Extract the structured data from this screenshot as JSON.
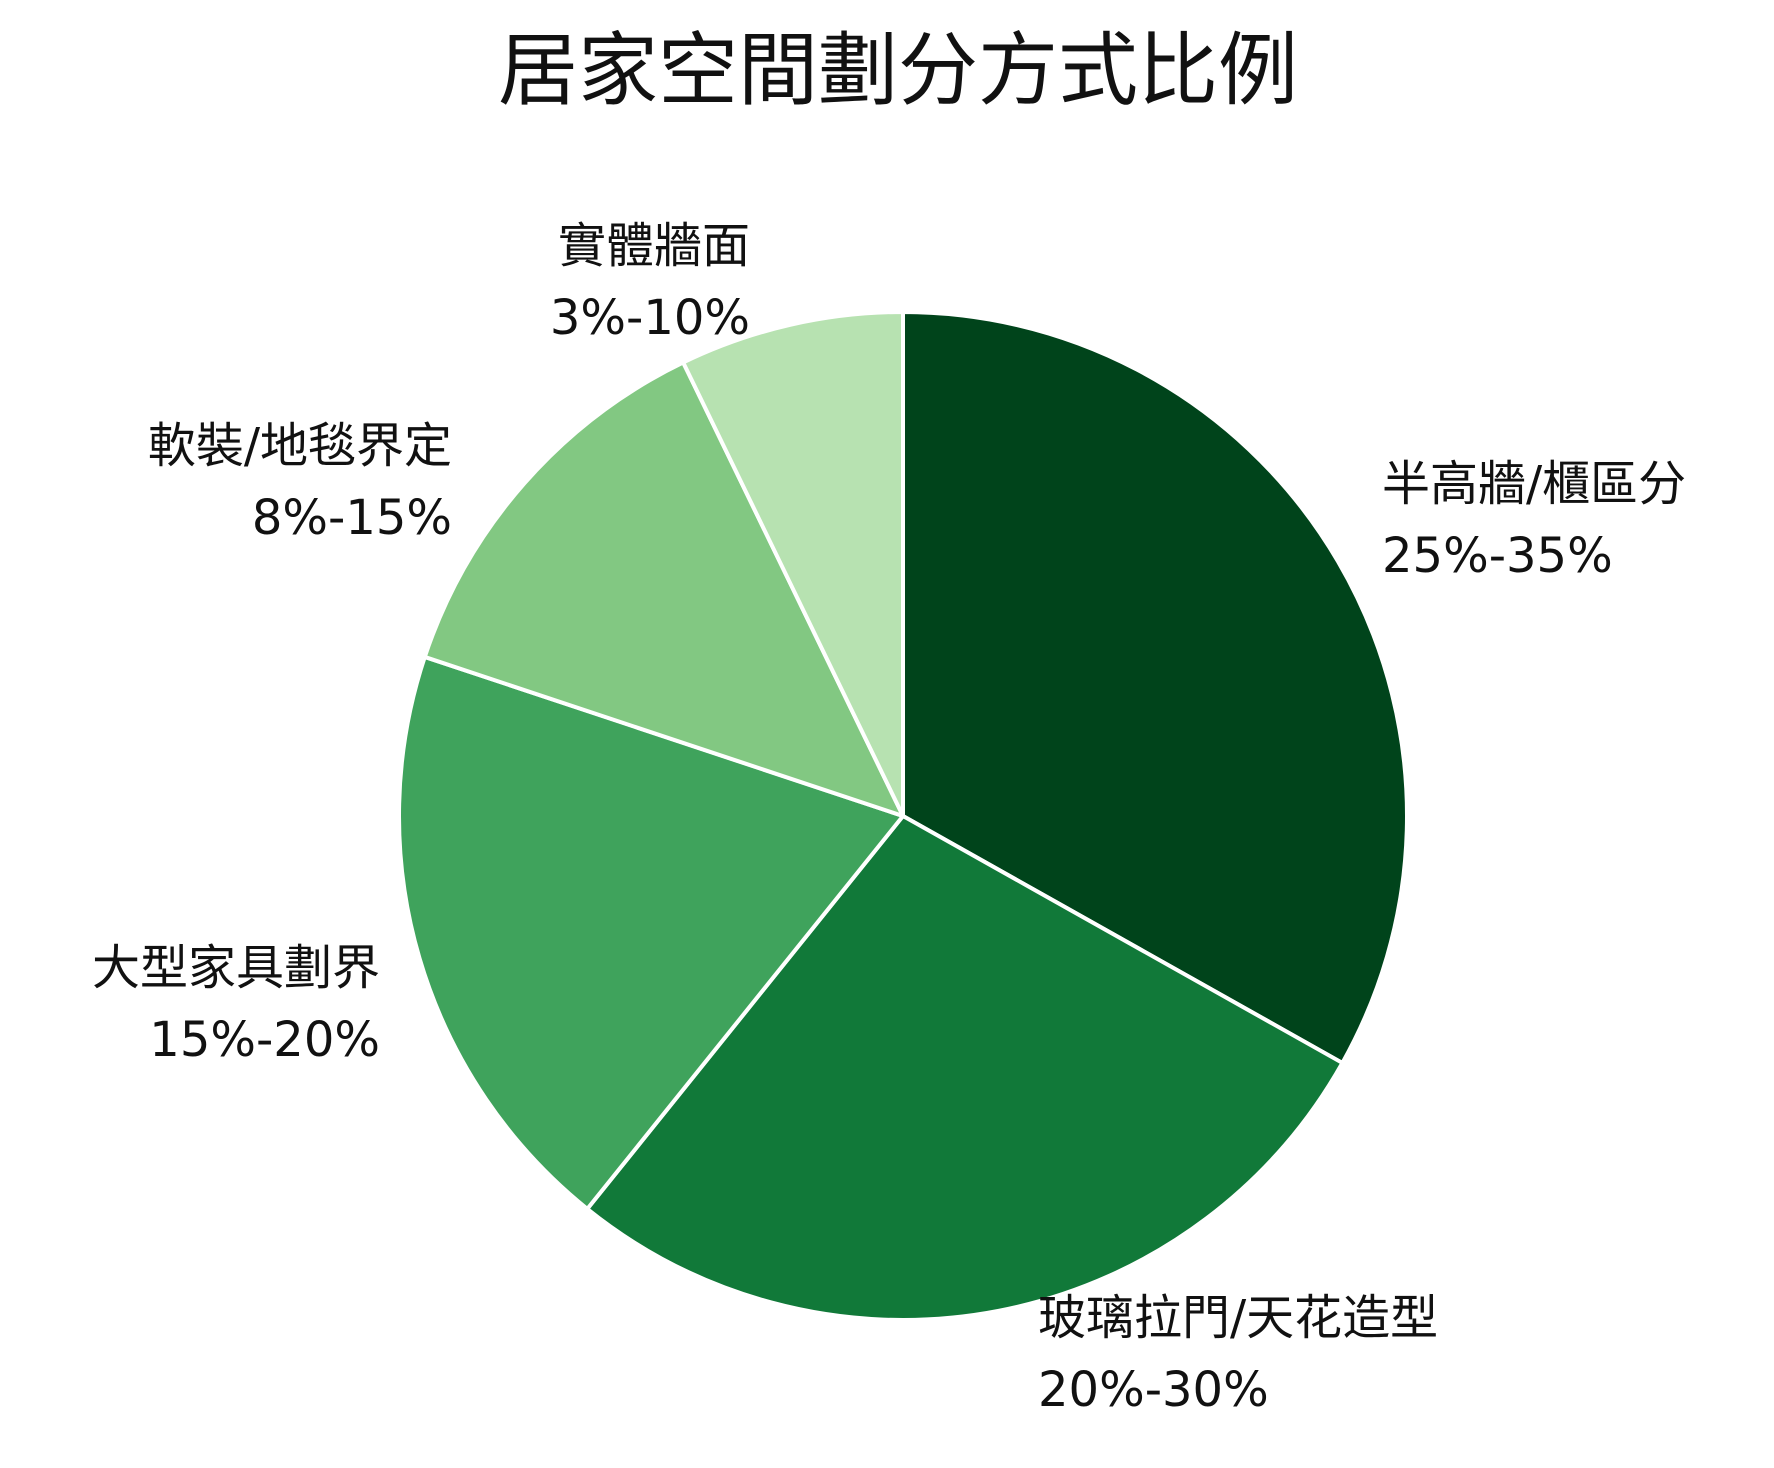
{
  "chart_data": {
    "type": "pie",
    "title": "居家空間劃分方式比例",
    "slices": [
      {
        "label": "半高牆/櫃區分",
        "range_text": "25%-35%",
        "value": 30,
        "color": "#00441b"
      },
      {
        "label": "玻璃拉門/天花造型",
        "range_text": "20%-30%",
        "value": 25,
        "color": "#117939"
      },
      {
        "label": "大型家具劃界",
        "range_text": "15%-20%",
        "value": 17.5,
        "color": "#3fa35c"
      },
      {
        "label": "軟裝/地毯界定",
        "range_text": "8%-15%",
        "value": 11.5,
        "color": "#82c882"
      },
      {
        "label": "實體牆面",
        "range_text": "3%-10%",
        "value": 6.5,
        "color": "#b7e2b1"
      }
    ],
    "start_angle_deg": 90,
    "direction": "clockwise",
    "legend": "none"
  }
}
